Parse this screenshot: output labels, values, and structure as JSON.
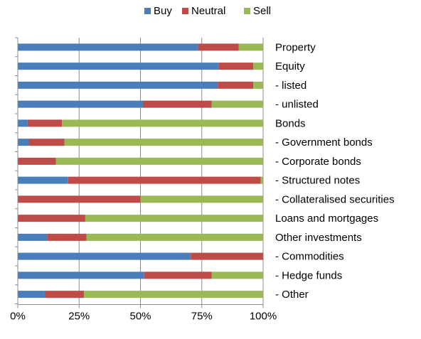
{
  "chart_data": {
    "type": "bar",
    "orientation": "horizontal",
    "stacked": true,
    "percent": true,
    "title": "",
    "xlabel": "",
    "ylabel": "",
    "xlim": [
      0,
      100
    ],
    "x_ticks": [
      "0%",
      "25%",
      "50%",
      "75%",
      "100%"
    ],
    "grid": true,
    "legend_position": "top",
    "categories": [
      "Property",
      "Equity",
      "- listed",
      "- unlisted",
      "Bonds",
      "- Government bonds",
      "- Corporate bonds",
      "- Structured notes",
      "- Collateralised securities",
      "Loans and mortgages",
      "Other investments",
      "- Commodities",
      "- Hedge funds",
      "- Other"
    ],
    "series": [
      {
        "name": "Buy",
        "color": "#4a7ebb",
        "values": [
          73.5,
          82,
          81.5,
          51,
          4,
          4.5,
          0,
          20.5,
          0,
          0,
          12,
          70.5,
          51.5,
          11
        ]
      },
      {
        "name": "Neutral",
        "color": "#be4b48",
        "values": [
          16.5,
          14,
          14.5,
          28,
          14,
          14.5,
          15.5,
          78.5,
          50,
          27.5,
          16,
          29.5,
          27.5,
          16
        ]
      },
      {
        "name": "Sell",
        "color": "#98b954",
        "values": [
          10,
          4,
          4,
          21,
          82,
          81,
          84.5,
          1,
          50,
          72.5,
          72,
          0,
          21,
          73
        ]
      }
    ]
  }
}
